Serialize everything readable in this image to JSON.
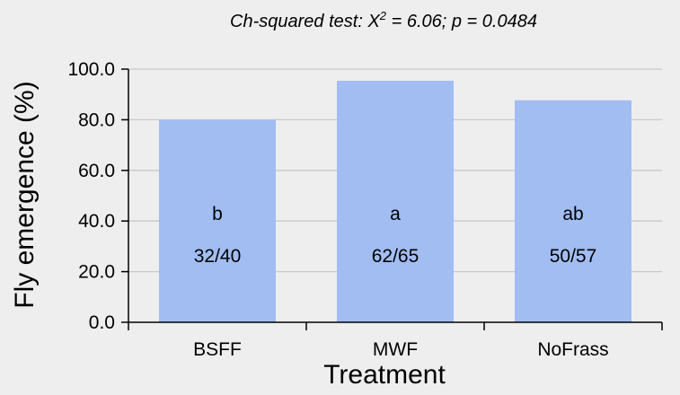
{
  "chart_data": {
    "type": "bar",
    "title_prefix": "Ch-squared test: X",
    "title_sup": "2",
    "title_suffix": " = 6.06; p = 0.0484",
    "xlabel": "Treatment",
    "ylabel": "Fly emergence (%)",
    "categories": [
      "BSFF",
      "MWF",
      "NoFrass"
    ],
    "values": [
      80.0,
      95.4,
      87.7
    ],
    "letters": [
      "b",
      "a",
      "ab"
    ],
    "ratios": [
      "32/40",
      "62/65",
      "50/57"
    ],
    "yticks": [
      "0.0",
      "20.0",
      "40.0",
      "60.0",
      "80.0",
      "100.0"
    ],
    "ylim": [
      0,
      100
    ],
    "grid": true,
    "colors": {
      "bar": "#a1bdf2",
      "grid": "#c8c8c8",
      "axis": "#000000"
    }
  }
}
